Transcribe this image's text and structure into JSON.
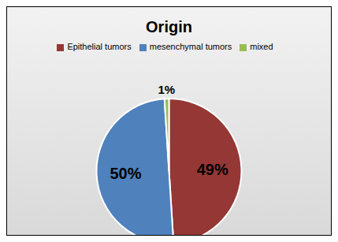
{
  "chart_data": {
    "type": "pie",
    "title": "Origin",
    "categories": [
      "Epithelial tumors",
      "mesenchymal tumors",
      "mixed"
    ],
    "values": [
      49,
      50,
      1
    ],
    "value_labels": [
      "49%",
      "50%",
      "1%"
    ],
    "colors": [
      "#953735",
      "#4f81bd",
      "#9bbb59"
    ],
    "legend": "top",
    "data_labels": true
  }
}
